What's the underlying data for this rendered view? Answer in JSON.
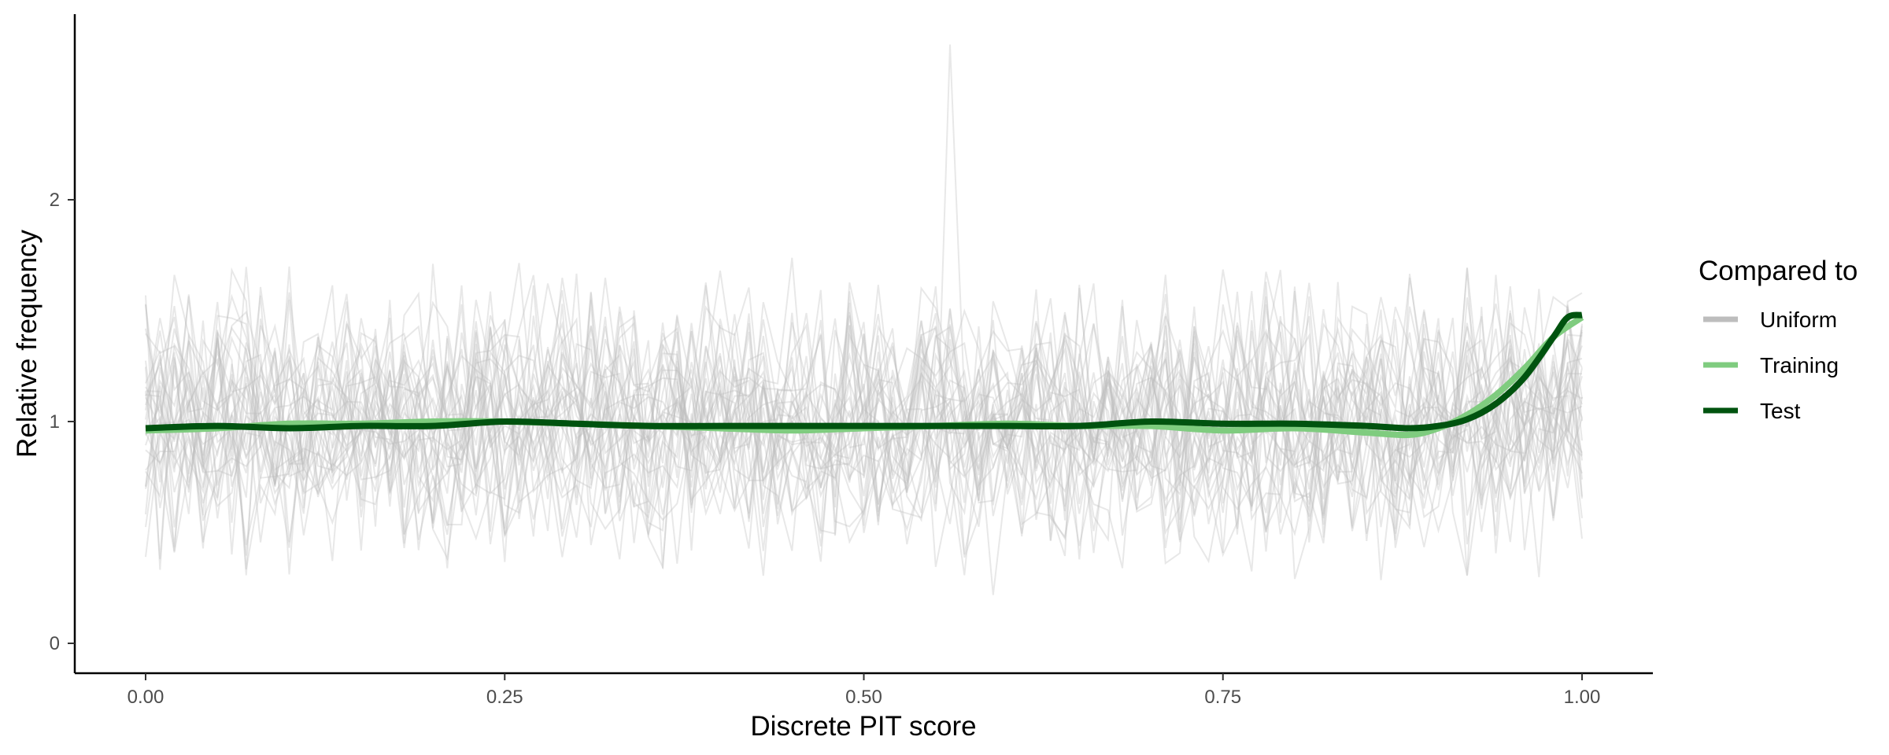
{
  "chart_data": {
    "type": "line",
    "xlabel": "Discrete PIT score",
    "ylabel": "Relative frequency",
    "xlim": [
      -0.05,
      1.05
    ],
    "ylim": [
      -0.13,
      2.83
    ],
    "x_ticks": [
      "0.00",
      "0.25",
      "0.50",
      "0.75",
      "1.00"
    ],
    "x_tick_values": [
      0,
      0.25,
      0.5,
      0.75,
      1.0
    ],
    "y_ticks": [
      "0",
      "1",
      "2"
    ],
    "y_tick_values": [
      0,
      1,
      2
    ],
    "grid": false,
    "legend": {
      "title": "Compared to",
      "position": "right",
      "entries": [
        {
          "label": "Uniform",
          "color": "#bdbdbd"
        },
        {
          "label": "Training",
          "color": "#7fcc7f"
        },
        {
          "label": "Test",
          "color": "#00530f"
        }
      ]
    },
    "uniform_band": {
      "description_color": "#bdbdbd",
      "n_reference_lines": 30,
      "typical_range": [
        0.3,
        2.0
      ],
      "max_peak": {
        "x": 0.56,
        "y": 2.7
      }
    },
    "series": [
      {
        "name": "Training",
        "color": "#7fcc7f",
        "x": [
          0.0,
          0.05,
          0.1,
          0.15,
          0.2,
          0.25,
          0.3,
          0.35,
          0.4,
          0.45,
          0.5,
          0.55,
          0.6,
          0.65,
          0.7,
          0.75,
          0.8,
          0.85,
          0.88,
          0.9,
          0.92,
          0.94,
          0.96,
          0.98,
          1.0
        ],
        "y": [
          0.96,
          0.97,
          0.99,
          0.99,
          1.0,
          1.0,
          0.99,
          0.98,
          0.97,
          0.96,
          0.97,
          0.98,
          0.99,
          0.98,
          0.98,
          0.96,
          0.97,
          0.95,
          0.94,
          0.97,
          1.03,
          1.12,
          1.24,
          1.38,
          1.47
        ]
      },
      {
        "name": "Test",
        "color": "#00530f",
        "x": [
          0.0,
          0.05,
          0.1,
          0.15,
          0.2,
          0.25,
          0.3,
          0.35,
          0.4,
          0.45,
          0.5,
          0.55,
          0.6,
          0.65,
          0.7,
          0.75,
          0.8,
          0.85,
          0.88,
          0.9,
          0.92,
          0.94,
          0.96,
          0.98,
          0.99,
          1.0
        ],
        "y": [
          0.97,
          0.98,
          0.97,
          0.98,
          0.98,
          1.0,
          0.99,
          0.98,
          0.98,
          0.98,
          0.98,
          0.98,
          0.98,
          0.98,
          1.0,
          0.99,
          0.99,
          0.98,
          0.97,
          0.98,
          1.01,
          1.08,
          1.2,
          1.38,
          1.47,
          1.48
        ]
      }
    ]
  }
}
